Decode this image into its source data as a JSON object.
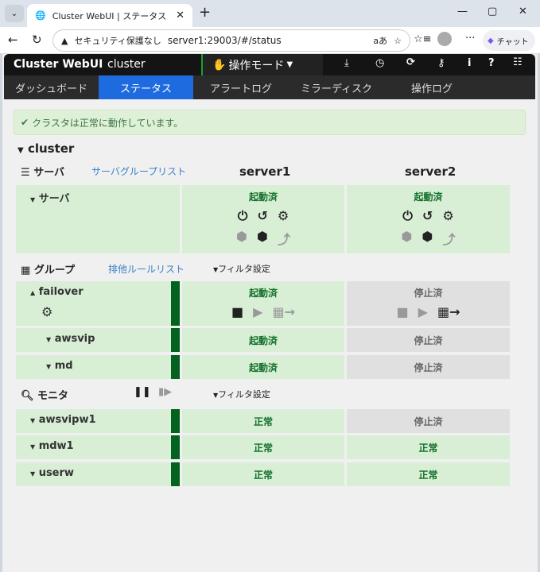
{
  "browser": {
    "tab_title": "Cluster WebUI | ステータス",
    "security": "セキュリティ保護なし",
    "url": "server1:29003/#/status",
    "chat": "チャット"
  },
  "app": {
    "title": "Cluster WebUI",
    "cluster": "cluster",
    "mode": "操作モード"
  },
  "nav": [
    "ダッシュボード",
    "ステータス",
    "アラートログ",
    "ミラーディスク",
    "操作ログ"
  ],
  "alert": "クラスタは正常に動作しています。",
  "cluster_name": "cluster",
  "servers_section": {
    "label": "サーバ",
    "link": "サーバグループリスト",
    "servers": [
      "server1",
      "server2"
    ],
    "row_label": "サーバ",
    "status": [
      "起動済",
      "起動済"
    ]
  },
  "groups_section": {
    "label": "グループ",
    "link": "排他ルールリスト",
    "filter": "フィルタ設定",
    "rows": [
      {
        "name": "failover",
        "status": [
          "起動済",
          "停止済"
        ]
      },
      {
        "name": "awsvip",
        "status": [
          "起動済",
          "停止済"
        ]
      },
      {
        "name": "md",
        "status": [
          "起動済",
          "停止済"
        ]
      }
    ]
  },
  "monitors_section": {
    "label": "モニタ",
    "filter": "フィルタ設定",
    "rows": [
      {
        "name": "awsvipw1",
        "status": [
          "正常",
          "停止済"
        ]
      },
      {
        "name": "mdw1",
        "status": [
          "正常",
          "正常"
        ]
      },
      {
        "name": "userw",
        "status": [
          "正常",
          "正常"
        ]
      }
    ]
  },
  "colors": {
    "running": "#15702c",
    "stopped": "#666666",
    "active_tab": "#1e6be0",
    "bar": "#04621f"
  }
}
